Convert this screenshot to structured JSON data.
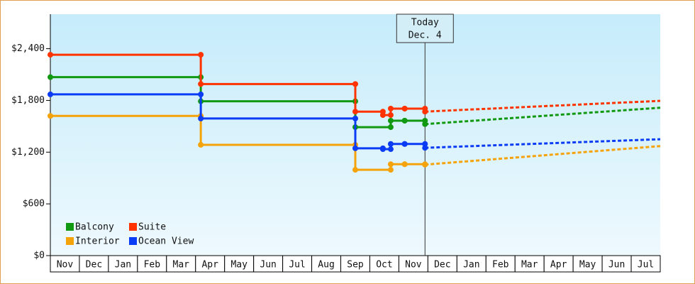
{
  "chart_data": {
    "type": "step",
    "categories": [
      "Nov",
      "Dec",
      "Jan",
      "Feb",
      "Mar",
      "Apr",
      "May",
      "Jun",
      "Jul",
      "Aug",
      "Sep",
      "Oct",
      "Nov",
      "Dec",
      "Jan",
      "Feb",
      "Mar",
      "Apr",
      "May",
      "Jun",
      "Jul"
    ],
    "xlim": [
      0,
      21
    ],
    "ylim": [
      0,
      2800
    ],
    "yticks": [
      {
        "value": 0,
        "label": "$0"
      },
      {
        "value": 600,
        "label": "$600"
      },
      {
        "value": 1200,
        "label": "$1,200"
      },
      {
        "value": 1800,
        "label": "$1,800"
      },
      {
        "value": 2400,
        "label": "$2,400"
      }
    ],
    "annotation": {
      "x": 12.9,
      "lines": [
        "Today",
        "Dec. 4"
      ]
    },
    "series": [
      {
        "name": "Balcony",
        "color": "#119911",
        "x": [
          0,
          5.18,
          10.5,
          11.72,
          12.2,
          12.9
        ],
        "values": [
          2070,
          1790,
          1490,
          1565,
          1565,
          1525
        ],
        "forecast_x": [
          12.9,
          21
        ],
        "forecast_values": [
          1525,
          1715
        ]
      },
      {
        "name": "Suite",
        "color": "#ff3300",
        "x": [
          0,
          5.18,
          10.5,
          11.45,
          11.72,
          12.2,
          12.9
        ],
        "values": [
          2330,
          1990,
          1670,
          1630,
          1705,
          1705,
          1670
        ],
        "forecast_x": [
          12.9,
          21
        ],
        "forecast_values": [
          1670,
          1795
        ]
      },
      {
        "name": "Interior",
        "color": "#f5a30a",
        "x": [
          0,
          5.18,
          10.5,
          11.72,
          12.2,
          12.9
        ],
        "values": [
          1620,
          1285,
          995,
          1060,
          1060,
          1055
        ],
        "forecast_x": [
          12.9,
          21
        ],
        "forecast_values": [
          1055,
          1270
        ]
      },
      {
        "name": "Ocean View",
        "color": "#0a3cf5",
        "x": [
          0,
          5.18,
          10.5,
          11.45,
          11.72,
          12.2,
          12.9
        ],
        "values": [
          1870,
          1590,
          1245,
          1235,
          1295,
          1295,
          1250
        ],
        "forecast_x": [
          12.9,
          21
        ],
        "forecast_values": [
          1250,
          1350
        ]
      }
    ]
  }
}
